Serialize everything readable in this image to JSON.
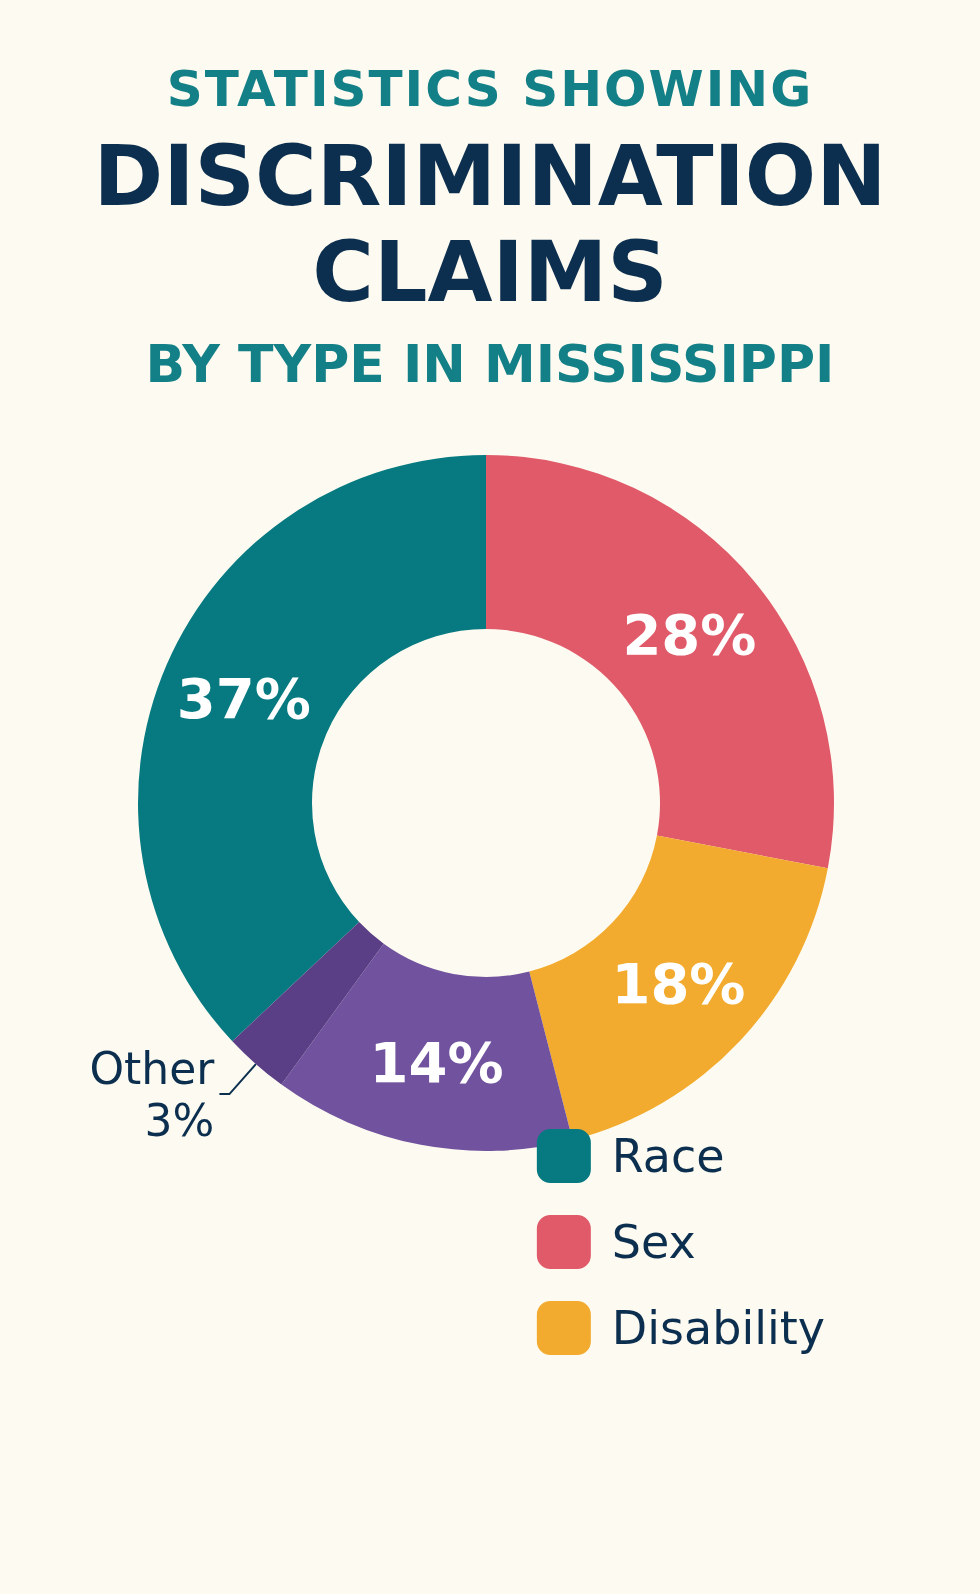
{
  "chart_data": {
    "type": "donut",
    "title": "DISCRIMINATION CLAIMS",
    "subtitle": "BY TYPE IN MISSISSIPPI",
    "annotations": [
      "STATISTICS SHOWING"
    ],
    "categories": [
      "Race",
      "Sex",
      "Disability",
      null,
      "Other"
    ],
    "values": [
      37,
      28,
      18,
      14,
      3
    ],
    "colors": [
      "#067a80",
      "#e05a6a",
      "#f2ab2e",
      "#71529e",
      "#5a3f87"
    ],
    "value_labels": [
      "37%",
      "28%",
      "18%",
      "14%",
      "3%"
    ],
    "legend": "bottom right"
  }
}
